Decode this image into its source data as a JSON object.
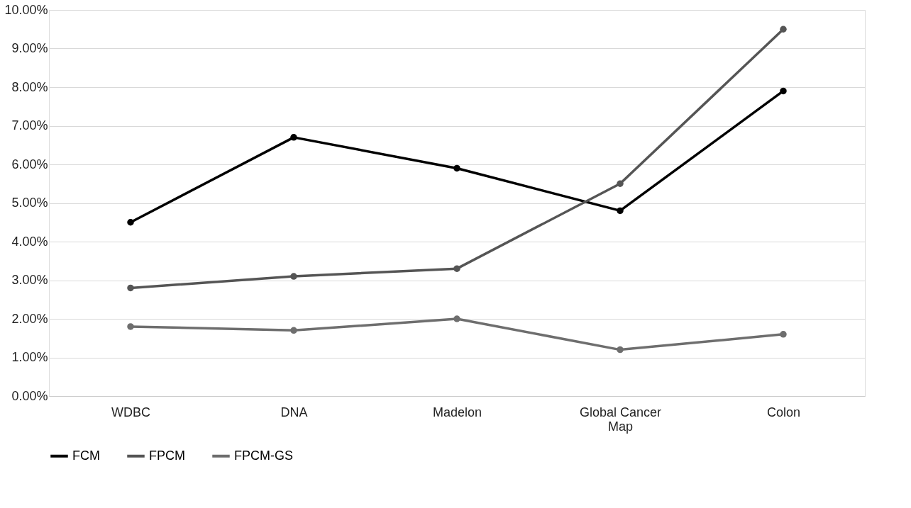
{
  "chart_data": {
    "type": "line",
    "categories": [
      "WDBC",
      "DNA",
      "Madelon",
      "Global Cancer Map",
      "Colon"
    ],
    "series": [
      {
        "name": "FCM",
        "color": "#000000",
        "values": [
          4.5,
          6.7,
          5.9,
          4.8,
          7.9
        ]
      },
      {
        "name": "FPCM",
        "color": "#555555",
        "values": [
          2.8,
          3.1,
          3.3,
          5.5,
          9.5
        ]
      },
      {
        "name": "FPCM-GS",
        "color": "#6e6e6e",
        "values": [
          1.8,
          1.7,
          2.0,
          1.2,
          1.6
        ]
      }
    ],
    "ylim": [
      0,
      10
    ],
    "yticks": [
      {
        "value": 0,
        "label": "0.00%"
      },
      {
        "value": 1,
        "label": "1.00%"
      },
      {
        "value": 2,
        "label": "2.00%"
      },
      {
        "value": 3,
        "label": "3.00%"
      },
      {
        "value": 4,
        "label": "4.00%"
      },
      {
        "value": 5,
        "label": "5.00%"
      },
      {
        "value": 6,
        "label": "6.00%"
      },
      {
        "value": 7,
        "label": "7.00%"
      },
      {
        "value": 8,
        "label": "8.00%"
      },
      {
        "value": 9,
        "label": "9.00%"
      },
      {
        "value": 10,
        "label": "10.00%"
      }
    ],
    "grid": "y",
    "legend": "bottom",
    "marker": "circle",
    "line_style": "solid"
  }
}
